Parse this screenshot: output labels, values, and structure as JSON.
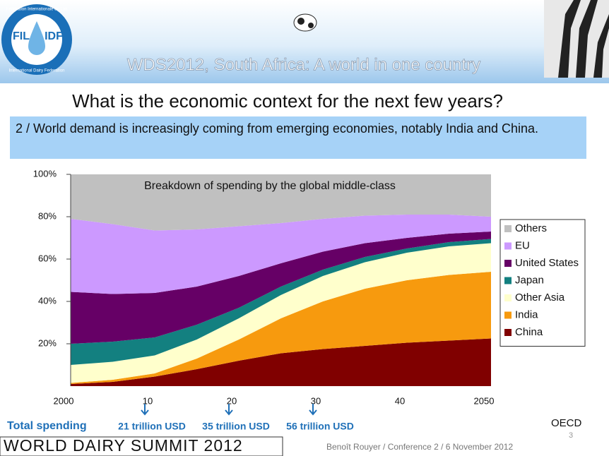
{
  "slide": {
    "logo": {
      "left": "FIL",
      "right": "IDF",
      "ring_top": "Fédération Internationale du Lait",
      "ring_bottom": "International Dairy Federation"
    },
    "banner": "WDS2012, South Africa: A world in one country",
    "heading": "What is the economic context for the next few years?",
    "subheading": "2 / World demand is increasingly coming from emerging economies, notably India and China.",
    "total_label": "Total spending",
    "totals": [
      "21 trillion USD",
      "35 trillion USD",
      "56 trillion USD"
    ],
    "source": "OECD",
    "footer_left": "WORLD DAIRY SUMMIT 2012",
    "footer_right": "Benoît Rouyer / Conference 2 /  6 November 2012",
    "page": "3"
  },
  "chart_data": {
    "type": "stacked_area",
    "title": "Breakdown of spending by the global middle-class",
    "x": [
      2000,
      2005,
      2010,
      2015,
      2020,
      2025,
      2030,
      2035,
      2040,
      2045,
      2050
    ],
    "xlim": [
      2000,
      2050
    ],
    "xticks": [
      2000,
      {
        "value": 2010,
        "label": "10"
      },
      {
        "value": 2020,
        "label": "20"
      },
      {
        "value": 2030,
        "label": "30"
      },
      {
        "value": 2040,
        "label": "40"
      },
      2050
    ],
    "ylim": [
      0,
      100
    ],
    "yticks": [
      {
        "value": 20,
        "label": "20%"
      },
      {
        "value": 40,
        "label": "40%"
      },
      {
        "value": 60,
        "label": "60%"
      },
      {
        "value": 80,
        "label": "80%"
      },
      {
        "value": 100,
        "label": "100%"
      }
    ],
    "legend": "right",
    "series": [
      {
        "name": "China",
        "color": "#800000",
        "values": [
          1,
          2,
          4.5,
          8,
          12,
          15.5,
          17.5,
          19,
          20.5,
          21.5,
          22.5
        ]
      },
      {
        "name": "India",
        "color": "#f79a0e",
        "values": [
          0.5,
          1,
          1.5,
          5,
          10,
          16.5,
          22.5,
          27,
          29.5,
          31,
          31.5
        ]
      },
      {
        "name": "Other Asia",
        "color": "#ffffcc",
        "values": [
          8.5,
          8.5,
          8.5,
          9,
          10,
          11,
          12,
          12.5,
          13,
          13.5,
          13.5
        ]
      },
      {
        "name": "Japan",
        "color": "#138080",
        "values": [
          10,
          9.5,
          8.5,
          7,
          5,
          4,
          3,
          2.5,
          2,
          2,
          2
        ]
      },
      {
        "name": "United States",
        "color": "#660066",
        "values": [
          24.5,
          22.5,
          21,
          18,
          15,
          11,
          8.5,
          6.5,
          5,
          4,
          3.5
        ]
      },
      {
        "name": "EU",
        "color": "#cc99ff",
        "values": [
          34.5,
          33,
          29.5,
          27,
          23.5,
          19,
          15.5,
          13,
          11,
          9,
          7
        ]
      },
      {
        "name": "Others",
        "color": "#c0c0c0",
        "values": [
          21,
          23.5,
          26.5,
          26,
          24.5,
          23,
          21,
          19.5,
          19,
          19,
          20
        ]
      }
    ]
  }
}
